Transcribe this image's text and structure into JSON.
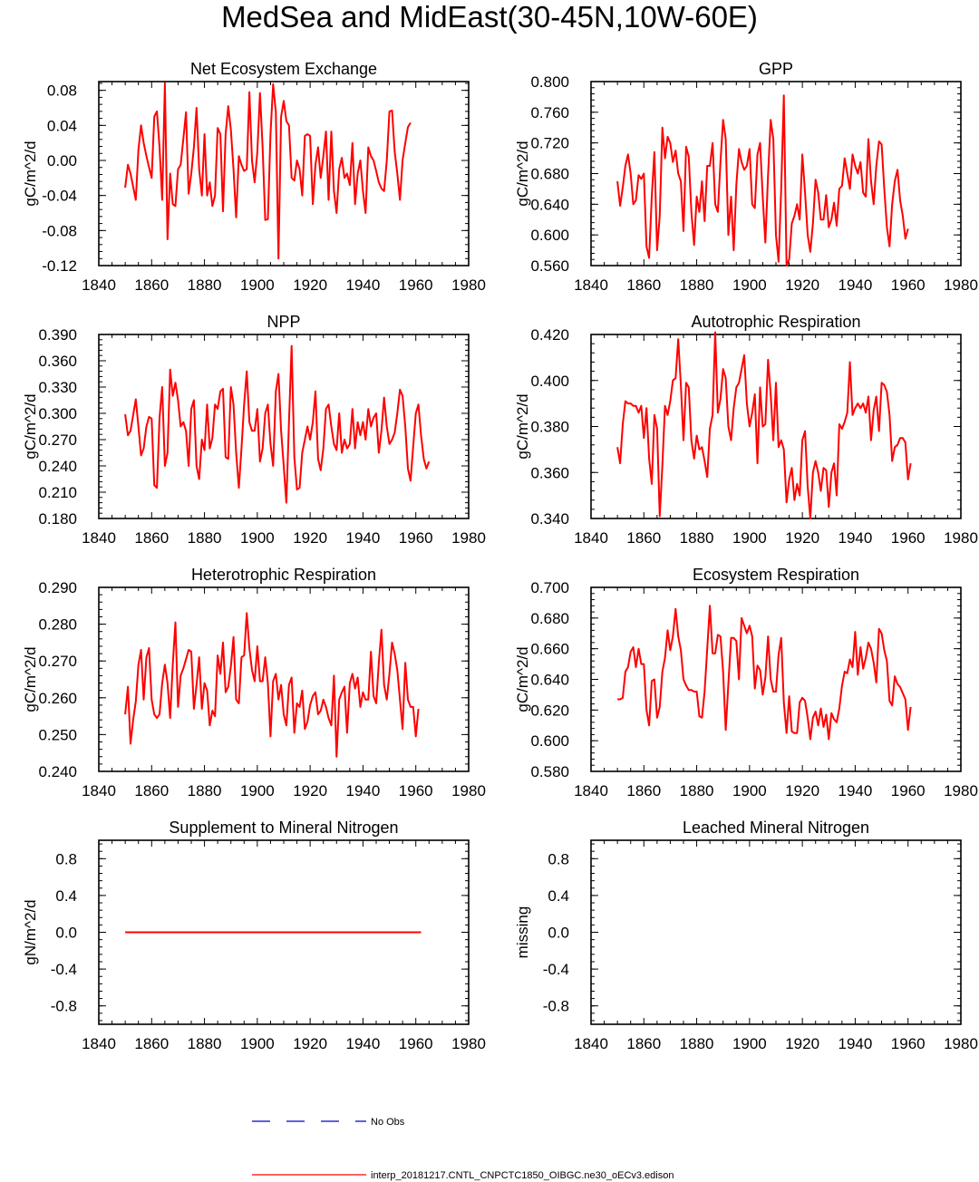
{
  "figure_title": "MedSea and MidEast(30-45N,10W-60E)",
  "legend": {
    "obs_label": "No Obs",
    "obs_color": "#0000cc",
    "model_label": "interp_20181217.CNTL_CNPCTC1850_OIBGC.ne30_oECv3.edison",
    "model_color": "#ff0000"
  },
  "chart_data": [
    {
      "type": "line",
      "title": "Net Ecosystem Exchange",
      "ylabel": "gC/m^2/d",
      "xlim": [
        1840,
        1980
      ],
      "ylim": [
        -0.12,
        0.09
      ],
      "x_ticks": [
        1840,
        1860,
        1880,
        1900,
        1920,
        1940,
        1960,
        1980
      ],
      "y_ticks": [
        -0.12,
        -0.08,
        -0.04,
        0.0,
        0.04,
        0.08
      ],
      "y_tick_labels": [
        "-0.12",
        "-0.08",
        "-0.04",
        "0.00",
        "0.04",
        "0.08"
      ],
      "x_start": 1850,
      "series": [
        {
          "name": "model",
          "color": "#ff0000",
          "values": [
            -0.031,
            -0.005,
            -0.015,
            -0.03,
            -0.045,
            0.012,
            0.04,
            0.02,
            0.005,
            -0.008,
            -0.02,
            0.05,
            0.056,
            0.015,
            -0.045,
            0.088,
            -0.09,
            -0.015,
            -0.05,
            -0.052,
            -0.01,
            -0.005,
            0.025,
            0.055,
            -0.038,
            -0.015,
            0.015,
            0.06,
            -0.01,
            -0.04,
            0.03,
            -0.04,
            -0.025,
            -0.052,
            -0.04,
            0.037,
            0.03,
            -0.058,
            0.03,
            0.062,
            0.035,
            -0.01,
            -0.065,
            0.005,
            -0.005,
            -0.012,
            -0.01,
            0.078,
            0.0,
            -0.025,
            0.01,
            0.077,
            0.015,
            -0.068,
            -0.067,
            0.03,
            0.087,
            0.055,
            -0.112,
            0.05,
            0.068,
            0.045,
            0.04,
            -0.02,
            -0.023,
            0.0,
            -0.01,
            -0.04,
            0.028,
            0.03,
            0.028,
            -0.05,
            -0.005,
            0.015,
            -0.02,
            0.005,
            0.033,
            -0.045,
            0.033,
            -0.035,
            -0.06,
            -0.01,
            0.003,
            -0.02,
            -0.015,
            -0.028,
            0.02,
            -0.05,
            -0.015,
            0.0,
            -0.035,
            -0.06,
            0.015,
            0.005,
            0.0,
            -0.012,
            -0.025,
            -0.032,
            -0.035,
            0.0,
            0.056,
            0.057,
            0.01,
            -0.015,
            -0.045,
            0.0,
            0.02,
            0.038,
            0.043
          ]
        }
      ]
    },
    {
      "type": "line",
      "title": "GPP",
      "ylabel": "gC/m^2/d",
      "xlim": [
        1840,
        1980
      ],
      "ylim": [
        0.56,
        0.8
      ],
      "x_ticks": [
        1840,
        1860,
        1880,
        1900,
        1920,
        1940,
        1960,
        1980
      ],
      "y_ticks": [
        0.56,
        0.6,
        0.64,
        0.68,
        0.72,
        0.76,
        0.8
      ],
      "y_tick_labels": [
        "0.560",
        "0.600",
        "0.640",
        "0.680",
        "0.720",
        "0.760",
        "0.800"
      ],
      "x_start": 1850,
      "series": [
        {
          "name": "model",
          "color": "#ff0000",
          "values": [
            0.67,
            0.638,
            0.662,
            0.69,
            0.705,
            0.68,
            0.64,
            0.645,
            0.678,
            0.673,
            0.68,
            0.585,
            0.57,
            0.65,
            0.708,
            0.58,
            0.625,
            0.74,
            0.7,
            0.728,
            0.72,
            0.695,
            0.71,
            0.68,
            0.67,
            0.605,
            0.715,
            0.702,
            0.63,
            0.587,
            0.65,
            0.63,
            0.67,
            0.618,
            0.69,
            0.69,
            0.72,
            0.64,
            0.63,
            0.695,
            0.75,
            0.725,
            0.6,
            0.65,
            0.58,
            0.665,
            0.712,
            0.695,
            0.685,
            0.69,
            0.712,
            0.64,
            0.635,
            0.705,
            0.72,
            0.65,
            0.59,
            0.678,
            0.75,
            0.725,
            0.6,
            0.565,
            0.66,
            0.782,
            0.56,
            0.568,
            0.615,
            0.625,
            0.64,
            0.62,
            0.705,
            0.655,
            0.6,
            0.578,
            0.615,
            0.672,
            0.655,
            0.62,
            0.62,
            0.652,
            0.61,
            0.62,
            0.642,
            0.612,
            0.66,
            0.664,
            0.7,
            0.68,
            0.66,
            0.705,
            0.69,
            0.68,
            0.695,
            0.655,
            0.65,
            0.725,
            0.67,
            0.64,
            0.69,
            0.722,
            0.718,
            0.66,
            0.61,
            0.585,
            0.64,
            0.67,
            0.685,
            0.645,
            0.625,
            0.595,
            0.608
          ]
        }
      ]
    },
    {
      "type": "line",
      "title": "NPP",
      "ylabel": "gC/m^2/d",
      "xlim": [
        1840,
        1980
      ],
      "ylim": [
        0.18,
        0.39
      ],
      "x_ticks": [
        1840,
        1860,
        1880,
        1900,
        1920,
        1940,
        1960,
        1980
      ],
      "y_ticks": [
        0.18,
        0.21,
        0.24,
        0.27,
        0.3,
        0.33,
        0.36,
        0.39
      ],
      "y_tick_labels": [
        "0.180",
        "0.210",
        "0.240",
        "0.270",
        "0.300",
        "0.330",
        "0.360",
        "0.390"
      ],
      "x_start": 1850,
      "series": [
        {
          "name": "model",
          "color": "#ff0000",
          "values": [
            0.299,
            0.275,
            0.28,
            0.298,
            0.316,
            0.285,
            0.252,
            0.26,
            0.285,
            0.296,
            0.294,
            0.218,
            0.215,
            0.295,
            0.33,
            0.24,
            0.255,
            0.35,
            0.32,
            0.335,
            0.315,
            0.285,
            0.29,
            0.28,
            0.24,
            0.305,
            0.315,
            0.24,
            0.225,
            0.27,
            0.258,
            0.31,
            0.26,
            0.272,
            0.31,
            0.305,
            0.325,
            0.328,
            0.25,
            0.248,
            0.33,
            0.31,
            0.255,
            0.215,
            0.26,
            0.31,
            0.348,
            0.29,
            0.28,
            0.28,
            0.305,
            0.245,
            0.26,
            0.3,
            0.31,
            0.265,
            0.24,
            0.325,
            0.345,
            0.28,
            0.24,
            0.198,
            0.29,
            0.377,
            0.25,
            0.213,
            0.215,
            0.255,
            0.27,
            0.285,
            0.27,
            0.29,
            0.325,
            0.248,
            0.235,
            0.26,
            0.305,
            0.31,
            0.285,
            0.265,
            0.258,
            0.3,
            0.255,
            0.27,
            0.26,
            0.265,
            0.305,
            0.26,
            0.29,
            0.275,
            0.29,
            0.27,
            0.305,
            0.285,
            0.295,
            0.3,
            0.255,
            0.28,
            0.318,
            0.285,
            0.265,
            0.27,
            0.278,
            0.3,
            0.327,
            0.32,
            0.285,
            0.237,
            0.223,
            0.262,
            0.3,
            0.31,
            0.275,
            0.248,
            0.237,
            0.245
          ]
        }
      ]
    },
    {
      "type": "line",
      "title": "Autotrophic Respiration",
      "ylabel": "gC/m^2/d",
      "xlim": [
        1840,
        1980
      ],
      "ylim": [
        0.34,
        0.42
      ],
      "x_ticks": [
        1840,
        1860,
        1880,
        1900,
        1920,
        1940,
        1960,
        1980
      ],
      "y_ticks": [
        0.34,
        0.36,
        0.38,
        0.4,
        0.42
      ],
      "y_tick_labels": [
        "0.340",
        "0.360",
        "0.380",
        "0.400",
        "0.420"
      ],
      "x_start": 1850,
      "series": [
        {
          "name": "model",
          "color": "#ff0000",
          "values": [
            0.371,
            0.364,
            0.381,
            0.391,
            0.39,
            0.39,
            0.389,
            0.389,
            0.386,
            0.389,
            0.375,
            0.388,
            0.366,
            0.355,
            0.385,
            0.379,
            0.341,
            0.363,
            0.389,
            0.385,
            0.391,
            0.4,
            0.401,
            0.418,
            0.398,
            0.374,
            0.399,
            0.397,
            0.374,
            0.366,
            0.376,
            0.37,
            0.371,
            0.365,
            0.358,
            0.379,
            0.385,
            0.421,
            0.386,
            0.392,
            0.405,
            0.401,
            0.38,
            0.374,
            0.388,
            0.397,
            0.399,
            0.405,
            0.411,
            0.39,
            0.38,
            0.386,
            0.394,
            0.364,
            0.397,
            0.38,
            0.381,
            0.409,
            0.394,
            0.374,
            0.399,
            0.371,
            0.374,
            0.37,
            0.347,
            0.357,
            0.362,
            0.348,
            0.355,
            0.35,
            0.374,
            0.378,
            0.354,
            0.34,
            0.36,
            0.365,
            0.36,
            0.352,
            0.362,
            0.361,
            0.345,
            0.36,
            0.364,
            0.35,
            0.381,
            0.379,
            0.382,
            0.386,
            0.408,
            0.385,
            0.388,
            0.39,
            0.388,
            0.39,
            0.386,
            0.393,
            0.374,
            0.387,
            0.393,
            0.378,
            0.399,
            0.398,
            0.395,
            0.385,
            0.365,
            0.371,
            0.372,
            0.375,
            0.375,
            0.373,
            0.357,
            0.364
          ]
        }
      ]
    },
    {
      "type": "line",
      "title": "Heterotrophic Respiration",
      "ylabel": "gC/m^2/d",
      "xlim": [
        1840,
        1980
      ],
      "ylim": [
        0.24,
        0.29
      ],
      "x_ticks": [
        1840,
        1860,
        1880,
        1900,
        1920,
        1940,
        1960,
        1980
      ],
      "y_ticks": [
        0.24,
        0.25,
        0.26,
        0.27,
        0.28,
        0.29
      ],
      "y_tick_labels": [
        "0.240",
        "0.250",
        "0.260",
        "0.270",
        "0.280",
        "0.290"
      ],
      "x_start": 1850,
      "series": [
        {
          "name": "model",
          "color": "#ff0000",
          "values": [
            0.2555,
            0.263,
            0.2475,
            0.254,
            0.259,
            0.269,
            0.273,
            0.2595,
            0.271,
            0.2735,
            0.2595,
            0.2555,
            0.2545,
            0.2555,
            0.264,
            0.269,
            0.264,
            0.2545,
            0.269,
            0.2805,
            0.2575,
            0.266,
            0.268,
            0.2705,
            0.273,
            0.2725,
            0.257,
            0.2635,
            0.271,
            0.257,
            0.264,
            0.262,
            0.2525,
            0.2565,
            0.255,
            0.2715,
            0.2665,
            0.275,
            0.2615,
            0.263,
            0.2685,
            0.2765,
            0.2595,
            0.2585,
            0.271,
            0.2715,
            0.283,
            0.2735,
            0.2675,
            0.2645,
            0.274,
            0.2645,
            0.2645,
            0.271,
            0.264,
            0.2495,
            0.2645,
            0.2665,
            0.2595,
            0.2635,
            0.2555,
            0.2525,
            0.2635,
            0.2655,
            0.2505,
            0.2585,
            0.2575,
            0.262,
            0.2515,
            0.2535,
            0.258,
            0.2605,
            0.2615,
            0.2555,
            0.2565,
            0.2595,
            0.2575,
            0.2545,
            0.2525,
            0.266,
            0.244,
            0.2595,
            0.2615,
            0.263,
            0.2505,
            0.264,
            0.2665,
            0.2625,
            0.2655,
            0.2575,
            0.2615,
            0.2595,
            0.2595,
            0.2725,
            0.2605,
            0.2585,
            0.2695,
            0.2785,
            0.2635,
            0.2595,
            0.2665,
            0.275,
            0.272,
            0.2675,
            0.2595,
            0.2515,
            0.2695,
            0.2595,
            0.2575,
            0.2575,
            0.2495,
            0.257
          ]
        }
      ]
    },
    {
      "type": "line",
      "title": "Ecosystem Respiration",
      "ylabel": "gC/m^2/d",
      "xlim": [
        1840,
        1980
      ],
      "ylim": [
        0.58,
        0.7
      ],
      "x_ticks": [
        1840,
        1860,
        1880,
        1900,
        1920,
        1940,
        1960,
        1980
      ],
      "y_ticks": [
        0.58,
        0.6,
        0.62,
        0.64,
        0.66,
        0.68,
        0.7
      ],
      "y_tick_labels": [
        "0.580",
        "0.600",
        "0.620",
        "0.640",
        "0.660",
        "0.680",
        "0.700"
      ],
      "x_start": 1850,
      "series": [
        {
          "name": "model",
          "color": "#ff0000",
          "values": [
            0.627,
            0.627,
            0.628,
            0.645,
            0.648,
            0.658,
            0.661,
            0.648,
            0.66,
            0.65,
            0.65,
            0.62,
            0.61,
            0.639,
            0.64,
            0.615,
            0.622,
            0.645,
            0.654,
            0.672,
            0.659,
            0.668,
            0.686,
            0.668,
            0.659,
            0.64,
            0.636,
            0.633,
            0.633,
            0.632,
            0.632,
            0.616,
            0.615,
            0.632,
            0.66,
            0.688,
            0.657,
            0.657,
            0.669,
            0.668,
            0.645,
            0.607,
            0.637,
            0.667,
            0.667,
            0.665,
            0.64,
            0.68,
            0.675,
            0.67,
            0.675,
            0.668,
            0.634,
            0.649,
            0.646,
            0.63,
            0.641,
            0.668,
            0.64,
            0.632,
            0.632,
            0.656,
            0.667,
            0.625,
            0.605,
            0.629,
            0.606,
            0.605,
            0.605,
            0.625,
            0.628,
            0.626,
            0.615,
            0.601,
            0.615,
            0.619,
            0.61,
            0.621,
            0.609,
            0.617,
            0.601,
            0.618,
            0.614,
            0.612,
            0.621,
            0.636,
            0.645,
            0.644,
            0.653,
            0.648,
            0.671,
            0.643,
            0.661,
            0.647,
            0.654,
            0.664,
            0.66,
            0.651,
            0.638,
            0.673,
            0.67,
            0.659,
            0.652,
            0.626,
            0.623,
            0.642,
            0.637,
            0.635,
            0.631,
            0.627,
            0.607,
            0.622
          ]
        }
      ]
    },
    {
      "type": "line",
      "title": "Supplement to Mineral Nitrogen",
      "ylabel": "gN/m^2/d",
      "xlim": [
        1840,
        1980
      ],
      "ylim": [
        -1.0,
        1.0
      ],
      "x_ticks": [
        1840,
        1860,
        1880,
        1900,
        1920,
        1940,
        1960,
        1980
      ],
      "y_ticks": [
        -0.8,
        -0.4,
        0.0,
        0.4,
        0.8
      ],
      "y_tick_labels": [
        "-0.8",
        "-0.4",
        "0.0",
        "0.4",
        "0.8"
      ],
      "x_start": 1850,
      "series": [
        {
          "name": "model",
          "color": "#ff0000",
          "x": [
            1850,
            1962
          ],
          "values": [
            0.0,
            0.0
          ]
        }
      ]
    },
    {
      "type": "line",
      "title": "Leached Mineral Nitrogen",
      "ylabel": "missing",
      "xlim": [
        1840,
        1980
      ],
      "ylim": [
        -1.0,
        1.0
      ],
      "x_ticks": [
        1840,
        1860,
        1880,
        1900,
        1920,
        1940,
        1960,
        1980
      ],
      "y_ticks": [
        -0.8,
        -0.4,
        0.0,
        0.4,
        0.8
      ],
      "y_tick_labels": [
        "-0.8",
        "-0.4",
        "0.0",
        "0.4",
        "0.8"
      ],
      "x_start": 1850,
      "series": []
    }
  ]
}
